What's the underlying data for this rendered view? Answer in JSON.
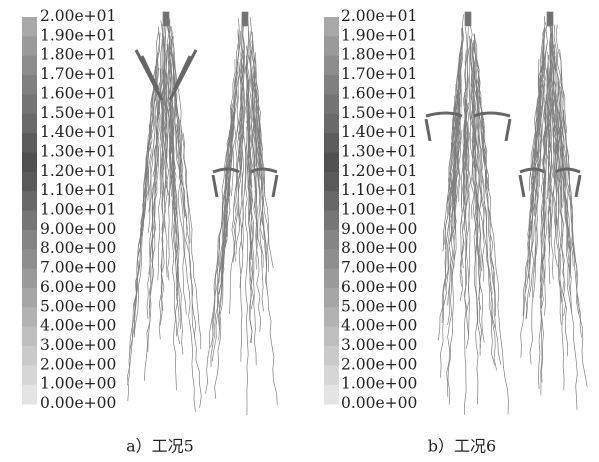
{
  "panels": [
    {
      "colorbar_labels": [
        "2.00e+01",
        "1.90e+01",
        "1.80e+01",
        "1.70e+01",
        "1.60e+01",
        "1.50e+01",
        "1.40e+01",
        "1.30e+01",
        "1.20e+01",
        "1.10e+01",
        "1.00e+01",
        "9.00e+00",
        "8.00e+00",
        "7.00e+00",
        "6.00e+00",
        "5.00e+00",
        "4.00e+00",
        "3.00e+00",
        "2.00e+00",
        "1.00e+00",
        "0.00e+00"
      ],
      "caption": "a）工况5"
    },
    {
      "colorbar_labels": [
        "2.00e+01",
        "1.90e+01",
        "1.80e+01",
        "1.70e+01",
        "1.60e+01",
        "1.50e+01",
        "1.40e+01",
        "1.30e+01",
        "1.20e+01",
        "1.10e+01",
        "1.00e+01",
        "9.00e+00",
        "8.00e+00",
        "7.00e+00",
        "6.00e+00",
        "5.00e+00",
        "4.00e+00",
        "3.00e+00",
        "2.00e+00",
        "1.00e+00",
        "0.00e+00"
      ],
      "caption": "b）工况6"
    }
  ]
}
